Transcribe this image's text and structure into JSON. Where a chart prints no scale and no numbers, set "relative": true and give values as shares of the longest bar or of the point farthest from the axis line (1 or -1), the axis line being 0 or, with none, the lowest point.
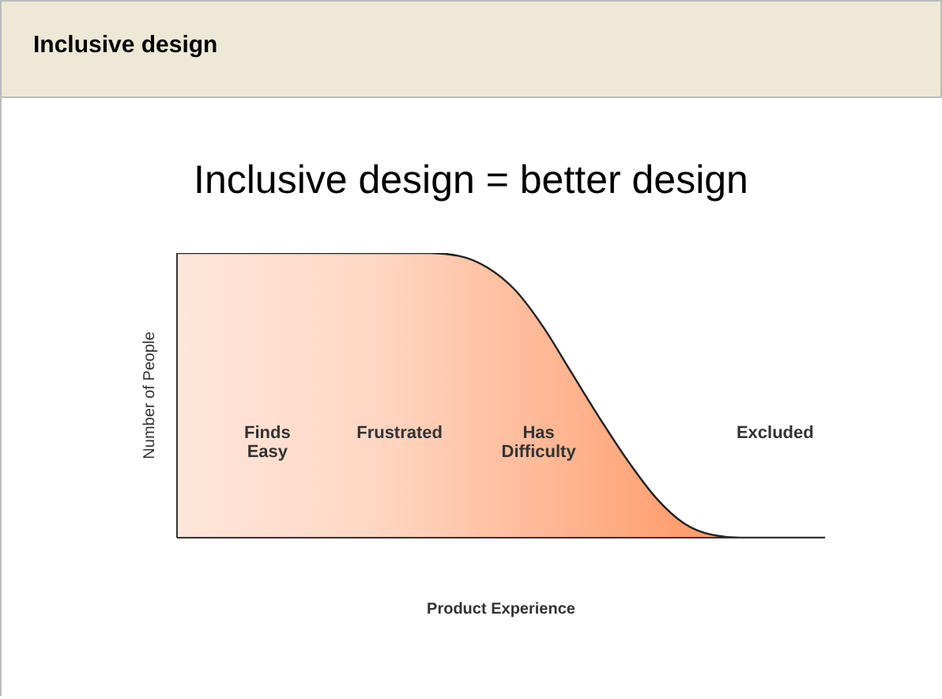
{
  "chart_data": {
    "type": "area",
    "title": "Inclusive design",
    "subtitle": "Inclusive design = better design",
    "xlabel": "Product Experience",
    "ylabel": "Number of People",
    "relative": true,
    "categories": [
      null,
      null,
      null,
      null,
      null,
      null,
      null,
      null,
      null,
      null,
      null,
      null,
      null,
      null,
      null,
      null,
      null,
      null,
      null,
      null,
      null,
      null,
      null,
      null
    ],
    "series": [
      {
        "color": "#ff5a0a",
        "values": [
          1,
          1,
          1,
          1,
          1,
          1,
          1,
          1,
          1,
          1,
          0.99,
          0.95,
          0.87,
          0.74,
          0.58,
          0.42,
          0.27,
          0.14,
          0.05,
          0.01,
          0,
          0,
          0,
          0
        ]
      }
    ],
    "annotations": [
      "Finds\nEasy",
      "Frustrated",
      "Has\nDifficulty",
      "Excluded"
    ],
    "grid": false,
    "legend": false
  }
}
